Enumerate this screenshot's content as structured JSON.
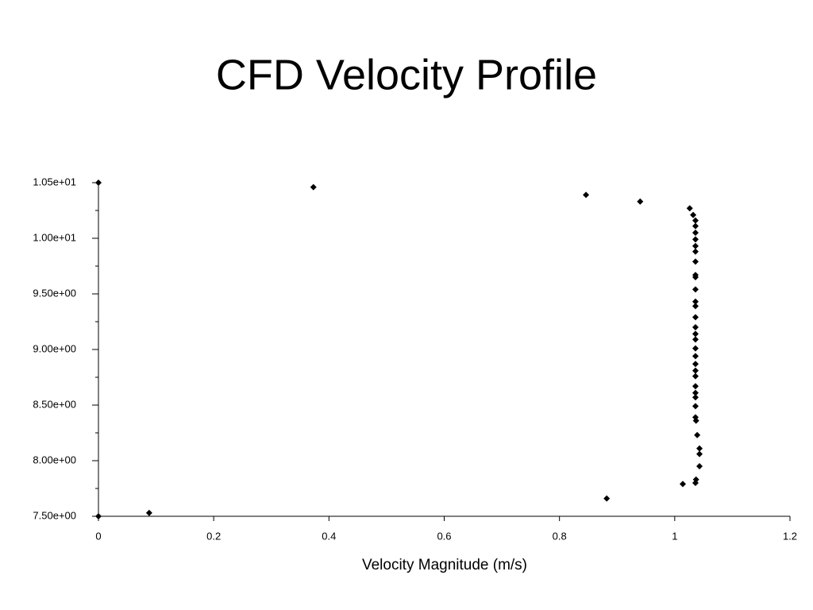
{
  "chart_data": {
    "type": "scatter",
    "title": "CFD Velocity Profile",
    "xlabel": "Velocity Magnitude (m/s)",
    "color": "#000000",
    "xlim": [
      0,
      1.2
    ],
    "ylim": [
      7.5,
      10.5
    ],
    "xticks": [
      0,
      0.2,
      0.4,
      0.6,
      0.8,
      1,
      1.2
    ],
    "yticks": [
      {
        "value": 7.5,
        "label": "7.50e+00"
      },
      {
        "value": 8.0,
        "label": "8.00e+00"
      },
      {
        "value": 8.5,
        "label": "8.50e+00"
      },
      {
        "value": 9.0,
        "label": "9.00e+00"
      },
      {
        "value": 9.5,
        "label": "9.50e+00"
      },
      {
        "value": 10.0,
        "label": "1.00e+01"
      },
      {
        "value": 10.5,
        "label": "1.05e+01"
      }
    ],
    "yminorticks": [
      7.75,
      8.25,
      8.75,
      9.25,
      9.75,
      10.25
    ],
    "x": [
      0,
      0.373,
      0.846,
      0.94,
      1.026,
      1.032,
      1.036,
      1.036,
      1.036,
      1.036,
      1.036,
      1.036,
      1.036,
      1.036,
      1.036,
      1.036,
      1.036,
      1.036,
      1.036,
      1.036,
      1.036,
      1.036,
      1.036,
      1.036,
      1.036,
      1.036,
      1.036,
      1.036,
      1.036,
      1.036,
      1.036,
      1.036,
      1.037,
      1.039,
      1.043,
      1.043,
      1.043,
      1.037,
      1.036,
      1.014,
      0.882,
      0.088,
      0
    ],
    "values": [
      10.5,
      10.46,
      10.39,
      10.33,
      10.27,
      10.21,
      10.16,
      10.11,
      10.05,
      9.99,
      9.93,
      9.88,
      9.79,
      9.67,
      9.65,
      9.54,
      9.43,
      9.39,
      9.29,
      9.2,
      9.14,
      9.09,
      9.01,
      8.94,
      8.87,
      8.81,
      8.76,
      8.67,
      8.61,
      8.57,
      8.49,
      8.39,
      8.36,
      8.23,
      8.11,
      8.06,
      7.95,
      7.83,
      7.8,
      7.79,
      7.66,
      7.53,
      7.5
    ]
  }
}
